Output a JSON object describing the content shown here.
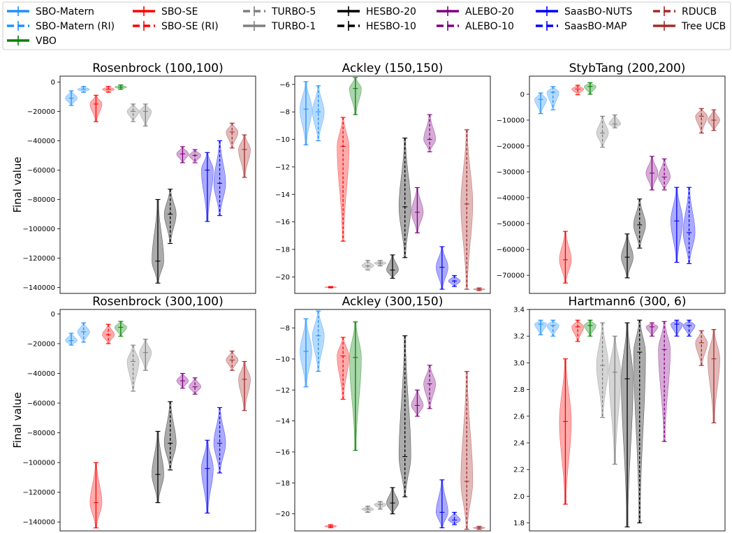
{
  "legend": {
    "entries": [
      {
        "name": "SBO-Matern",
        "color": "#1e90ff",
        "dashed": false
      },
      {
        "name": "SBO-SE",
        "color": "#ff0000",
        "dashed": false
      },
      {
        "name": "TURBO-5",
        "color": "#808080",
        "dashed": true
      },
      {
        "name": "HESBO-20",
        "color": "#000000",
        "dashed": false
      },
      {
        "name": "ALEBO-20",
        "color": "#800080",
        "dashed": false
      },
      {
        "name": "SaasBO-NUTS",
        "color": "#0000ff",
        "dashed": false
      },
      {
        "name": "RDUCB",
        "color": "#a52a2a",
        "dashed": true
      },
      {
        "name": "SBO-Matern (RI)",
        "color": "#1e90ff",
        "dashed": true
      },
      {
        "name": "SBO-SE (RI)",
        "color": "#ff0000",
        "dashed": true
      },
      {
        "name": "TURBO-1",
        "color": "#808080",
        "dashed": false
      },
      {
        "name": "HESBO-10",
        "color": "#000000",
        "dashed": true
      },
      {
        "name": "ALEBO-10",
        "color": "#800080",
        "dashed": true
      },
      {
        "name": "SaasBO-MAP",
        "color": "#0000ff",
        "dashed": true
      },
      {
        "name": "Tree UCB",
        "color": "#a52a2a",
        "dashed": false
      },
      {
        "name": "VBO",
        "color": "#008000",
        "dashed": false
      }
    ]
  },
  "chart_data": [
    {
      "type": "violin",
      "title": "Rosenbrock (100,100)",
      "ylabel": "Final value",
      "ylim": [
        -144000,
        4000
      ],
      "yticks": [
        0,
        -20000,
        -40000,
        -60000,
        -80000,
        -100000,
        -120000,
        -140000
      ],
      "yticklabels": [
        "0",
        "−20000",
        "−40000",
        "−60000",
        "−80000",
        "−100000",
        "−120000",
        "−140000"
      ],
      "violins": [
        {
          "method": "SBO-Matern",
          "min": -16000,
          "max": -6000,
          "median": -11000
        },
        {
          "method": "SBO-Matern (RI)",
          "min": -7000,
          "max": -3000,
          "median": -5000
        },
        {
          "method": "SBO-SE",
          "min": -27000,
          "max": -9000,
          "median": -15000
        },
        {
          "method": "SBO-SE (RI)",
          "min": -7000,
          "max": -3000,
          "median": -5000
        },
        {
          "method": "VBO",
          "min": -5000,
          "max": -2000,
          "median": -3500
        },
        {
          "method": "TURBO-5",
          "min": -27000,
          "max": -15000,
          "median": -20000
        },
        {
          "method": "TURBO-1",
          "min": -30000,
          "max": -15000,
          "median": -20000
        },
        {
          "method": "HESBO-20",
          "min": -137000,
          "max": -80000,
          "median": -122000
        },
        {
          "method": "HESBO-10",
          "min": -110000,
          "max": -73000,
          "median": -90000
        },
        {
          "method": "ALEBO-20",
          "min": -55000,
          "max": -44000,
          "median": -49000
        },
        {
          "method": "ALEBO-10",
          "min": -55000,
          "max": -46000,
          "median": -50000
        },
        {
          "method": "SaasBO-NUTS",
          "min": -95000,
          "max": -48000,
          "median": -60000
        },
        {
          "method": "SaasBO-MAP",
          "min": -91000,
          "max": -40000,
          "median": -69000
        },
        {
          "method": "RDUCB",
          "min": -45000,
          "max": -28000,
          "median": -34000
        },
        {
          "method": "Tree UCB",
          "min": -65000,
          "max": -36000,
          "median": -46000
        }
      ]
    },
    {
      "type": "violin",
      "title": "Ackley (150,150)",
      "ylabel": "",
      "ylim": [
        -21.2,
        -5.4
      ],
      "yticks": [
        -6,
        -8,
        -10,
        -12,
        -14,
        -16,
        -18,
        -20
      ],
      "yticklabels": [
        "−6",
        "−8",
        "−10",
        "−12",
        "−14",
        "−16",
        "−18",
        "−20"
      ],
      "violins": [
        {
          "method": "SBO-Matern",
          "min": -10.4,
          "max": -5.8,
          "median": -7.8
        },
        {
          "method": "SBO-Matern (RI)",
          "min": -10.1,
          "max": -6.1,
          "median": -8.0
        },
        {
          "method": "SBO-SE",
          "min": -20.8,
          "max": -20.7,
          "median": -20.75
        },
        {
          "method": "SBO-SE (RI)",
          "min": -17.4,
          "max": -8.4,
          "median": -10.5
        },
        {
          "method": "VBO",
          "min": -8.2,
          "max": -5.5,
          "median": -6.3
        },
        {
          "method": "TURBO-5",
          "min": -19.5,
          "max": -18.8,
          "median": -19.2
        },
        {
          "method": "TURBO-1",
          "min": -19.2,
          "max": -18.8,
          "median": -19.0
        },
        {
          "method": "HESBO-20",
          "min": -20.1,
          "max": -18.4,
          "median": -19.5
        },
        {
          "method": "HESBO-10",
          "min": -18.6,
          "max": -9.9,
          "median": -14.9
        },
        {
          "method": "ALEBO-20",
          "min": -16.8,
          "max": -13.5,
          "median": -15.3
        },
        {
          "method": "ALEBO-10",
          "min": -10.9,
          "max": -8.2,
          "median": -10.0
        },
        {
          "method": "SaasBO-NUTS",
          "min": -20.9,
          "max": -17.8,
          "median": -19.3
        },
        {
          "method": "SaasBO-MAP",
          "min": -20.7,
          "max": -19.9,
          "median": -20.3
        },
        {
          "method": "RDUCB",
          "min": -20.9,
          "max": -9.3,
          "median": -14.7
        },
        {
          "method": "Tree UCB",
          "min": -21.0,
          "max": -20.8,
          "median": -20.9
        }
      ]
    },
    {
      "type": "violin",
      "title": "StybTang (200,200)",
      "ylabel": "",
      "ylim": [
        -77000,
        7000
      ],
      "yticks": [
        0,
        -10000,
        -20000,
        -30000,
        -40000,
        -50000,
        -60000,
        -70000
      ],
      "yticklabels": [
        "0",
        "−10000",
        "−20000",
        "−30000",
        "−40000",
        "−50000",
        "−60000",
        "−70000"
      ],
      "violins": [
        {
          "method": "SBO-Matern",
          "min": -7500,
          "max": 500,
          "median": -2000
        },
        {
          "method": "SBO-Matern (RI)",
          "min": -6000,
          "max": 3000,
          "median": 800
        },
        {
          "method": "SBO-SE",
          "min": -73000,
          "max": -53000,
          "median": -64000
        },
        {
          "method": "SBO-SE (RI)",
          "min": -200,
          "max": 3500,
          "median": 2000
        },
        {
          "method": "VBO",
          "min": 0,
          "max": 4500,
          "median": 3000
        },
        {
          "method": "TURBO-5",
          "min": -20500,
          "max": -8500,
          "median": -15000
        },
        {
          "method": "TURBO-1",
          "min": -13000,
          "max": -8000,
          "median": -11500
        },
        {
          "method": "HESBO-20",
          "min": -71000,
          "max": -54000,
          "median": -63000
        },
        {
          "method": "HESBO-10",
          "min": -59500,
          "max": -40500,
          "median": -50500
        },
        {
          "method": "ALEBO-20",
          "min": -37000,
          "max": -24000,
          "median": -30500
        },
        {
          "method": "ALEBO-10",
          "min": -37000,
          "max": -25000,
          "median": -32000
        },
        {
          "method": "SaasBO-NUTS",
          "min": -65000,
          "max": -36000,
          "median": -49000
        },
        {
          "method": "SaasBO-MAP",
          "min": -65500,
          "max": -36000,
          "median": -53500
        },
        {
          "method": "RDUCB",
          "min": -15000,
          "max": -5500,
          "median": -8500
        },
        {
          "method": "Tree UCB",
          "min": -14000,
          "max": -6000,
          "median": -10000
        }
      ]
    },
    {
      "type": "violin",
      "title": "Rosenbrock (300,100)",
      "ylabel": "Final value",
      "ylim": [
        -146000,
        3000
      ],
      "yticks": [
        0,
        -20000,
        -40000,
        -60000,
        -80000,
        -100000,
        -120000,
        -140000
      ],
      "yticklabels": [
        "0",
        "−20000",
        "−40000",
        "−60000",
        "−80000",
        "−100000",
        "−120000",
        "−140000"
      ],
      "violins": [
        {
          "method": "SBO-Matern",
          "min": -21000,
          "max": -13000,
          "median": -18000
        },
        {
          "method": "SBO-Matern (RI)",
          "min": -19000,
          "max": -6000,
          "median": -12000
        },
        {
          "method": "SBO-SE",
          "min": -144000,
          "max": -100000,
          "median": -127000
        },
        {
          "method": "SBO-SE (RI)",
          "min": -20000,
          "max": -7000,
          "median": -14000
        },
        {
          "method": "VBO",
          "min": -15000,
          "max": -5000,
          "median": -9000
        },
        {
          "method": "TURBO-5",
          "min": -52000,
          "max": -21000,
          "median": -32000
        },
        {
          "method": "TURBO-1",
          "min": -38000,
          "max": -17000,
          "median": -26000
        },
        {
          "method": "HESBO-20",
          "min": -127000,
          "max": -79000,
          "median": -108000
        },
        {
          "method": "HESBO-10",
          "min": -105000,
          "max": -59000,
          "median": -87000
        },
        {
          "method": "ALEBO-20",
          "min": -50000,
          "max": -40000,
          "median": -45000
        },
        {
          "method": "ALEBO-10",
          "min": -54000,
          "max": -43000,
          "median": -49000
        },
        {
          "method": "SaasBO-NUTS",
          "min": -134000,
          "max": -85000,
          "median": -104000
        },
        {
          "method": "SaasBO-MAP",
          "min": -107000,
          "max": -63000,
          "median": -87000
        },
        {
          "method": "RDUCB",
          "min": -38000,
          "max": -25000,
          "median": -31000
        },
        {
          "method": "Tree UCB",
          "min": -65000,
          "max": -32000,
          "median": -44000
        }
      ]
    },
    {
      "type": "violin",
      "title": "Ackley (300,150)",
      "ylabel": "",
      "ylim": [
        -21.1,
        -6.8
      ],
      "yticks": [
        -8,
        -10,
        -12,
        -14,
        -16,
        -18,
        -20
      ],
      "yticklabels": [
        "−8",
        "−10",
        "−12",
        "−14",
        "−16",
        "−18",
        "−20"
      ],
      "violins": [
        {
          "method": "SBO-Matern",
          "min": -11.8,
          "max": -7.4,
          "median": -9.5
        },
        {
          "method": "SBO-Matern (RI)",
          "min": -10.8,
          "max": -6.9,
          "median": -8.5
        },
        {
          "method": "SBO-SE",
          "min": -20.9,
          "max": -20.7,
          "median": -20.8
        },
        {
          "method": "SBO-SE (RI)",
          "min": -12.6,
          "max": -8.6,
          "median": -9.8
        },
        {
          "method": "VBO",
          "min": -15.9,
          "max": -7.6,
          "median": -9.9
        },
        {
          "method": "TURBO-5",
          "min": -19.9,
          "max": -19.5,
          "median": -19.7
        },
        {
          "method": "TURBO-1",
          "min": -19.7,
          "max": -19.2,
          "median": -19.4
        },
        {
          "method": "HESBO-20",
          "min": -20.0,
          "max": -18.3,
          "median": -19.3
        },
        {
          "method": "HESBO-10",
          "min": -18.9,
          "max": -8.5,
          "median": -16.3
        },
        {
          "method": "ALEBO-20",
          "min": -13.7,
          "max": -12.0,
          "median": -13.0
        },
        {
          "method": "ALEBO-10",
          "min": -13.2,
          "max": -10.4,
          "median": -11.6
        },
        {
          "method": "SaasBO-NUTS",
          "min": -20.9,
          "max": -17.8,
          "median": -19.9
        },
        {
          "method": "SaasBO-MAP",
          "min": -20.7,
          "max": -19.9,
          "median": -20.4
        },
        {
          "method": "RDUCB",
          "min": -21.0,
          "max": -10.8,
          "median": -17.9
        },
        {
          "method": "Tree UCB",
          "min": -21.0,
          "max": -20.8,
          "median": -20.9
        }
      ]
    },
    {
      "type": "violin",
      "title": "Hartmann6 (300, 6)",
      "ylabel": "",
      "ylim": [
        1.74,
        3.4
      ],
      "yticks": [
        3.4,
        3.2,
        3.0,
        2.8,
        2.6,
        2.4,
        2.2,
        2.0,
        1.8
      ],
      "yticklabels": [
        "3.4",
        "3.2",
        "3.0",
        "2.8",
        "2.6",
        "2.4",
        "2.2",
        "2.0",
        "1.8"
      ],
      "violins": [
        {
          "method": "SBO-Matern",
          "min": 3.21,
          "max": 3.32,
          "median": 3.29
        },
        {
          "method": "SBO-Matern (RI)",
          "min": 3.2,
          "max": 3.32,
          "median": 3.28
        },
        {
          "method": "SBO-SE",
          "min": 1.94,
          "max": 3.03,
          "median": 2.56
        },
        {
          "method": "SBO-SE (RI)",
          "min": 3.16,
          "max": 3.32,
          "median": 3.27
        },
        {
          "method": "VBO",
          "min": 3.2,
          "max": 3.32,
          "median": 3.28
        },
        {
          "method": "TURBO-5",
          "min": 2.59,
          "max": 3.3,
          "median": 2.98
        },
        {
          "method": "TURBO-1",
          "min": 2.24,
          "max": 3.2,
          "median": 2.93
        },
        {
          "method": "HESBO-20",
          "min": 1.77,
          "max": 3.3,
          "median": 2.88
        },
        {
          "method": "HESBO-10",
          "min": 1.8,
          "max": 3.32,
          "median": 3.08
        },
        {
          "method": "ALEBO-20",
          "min": 3.2,
          "max": 3.3,
          "median": 3.27
        },
        {
          "method": "ALEBO-10",
          "min": 2.41,
          "max": 3.31,
          "median": 3.1
        },
        {
          "method": "SaasBO-NUTS",
          "min": 3.2,
          "max": 3.32,
          "median": 3.29
        },
        {
          "method": "SaasBO-MAP",
          "min": 3.2,
          "max": 3.32,
          "median": 3.28
        },
        {
          "method": "RDUCB",
          "min": 2.98,
          "max": 3.24,
          "median": 3.15
        },
        {
          "method": "Tree UCB",
          "min": 2.55,
          "max": 3.25,
          "median": 3.03
        }
      ]
    }
  ]
}
